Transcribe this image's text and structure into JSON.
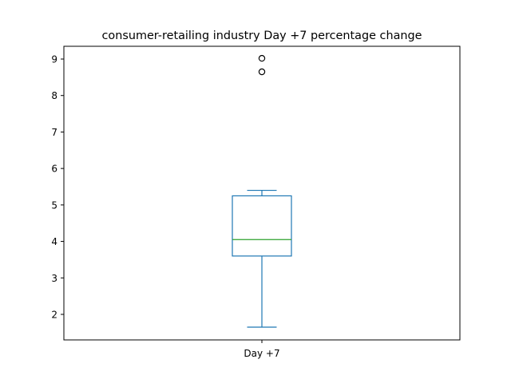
{
  "chart_data": {
    "type": "box",
    "title": "consumer-retailing industry Day +7 percentage change",
    "xlabel": "",
    "ylabel": "",
    "categories": [
      "Day +7"
    ],
    "ylim": [
      1.3,
      9.35
    ],
    "yticks": [
      2,
      3,
      4,
      5,
      6,
      7,
      8,
      9
    ],
    "grid": false,
    "boxes": [
      {
        "name": "Day +7",
        "whisker_low": 1.65,
        "q1": 3.6,
        "median": 4.05,
        "q3": 5.25,
        "whisker_high": 5.4,
        "outliers": [
          8.65,
          9.02
        ]
      }
    ],
    "colors": {
      "box": "#1f77b4",
      "median": "#2ca02c",
      "outlier": "#000000",
      "axis": "#000000"
    }
  }
}
